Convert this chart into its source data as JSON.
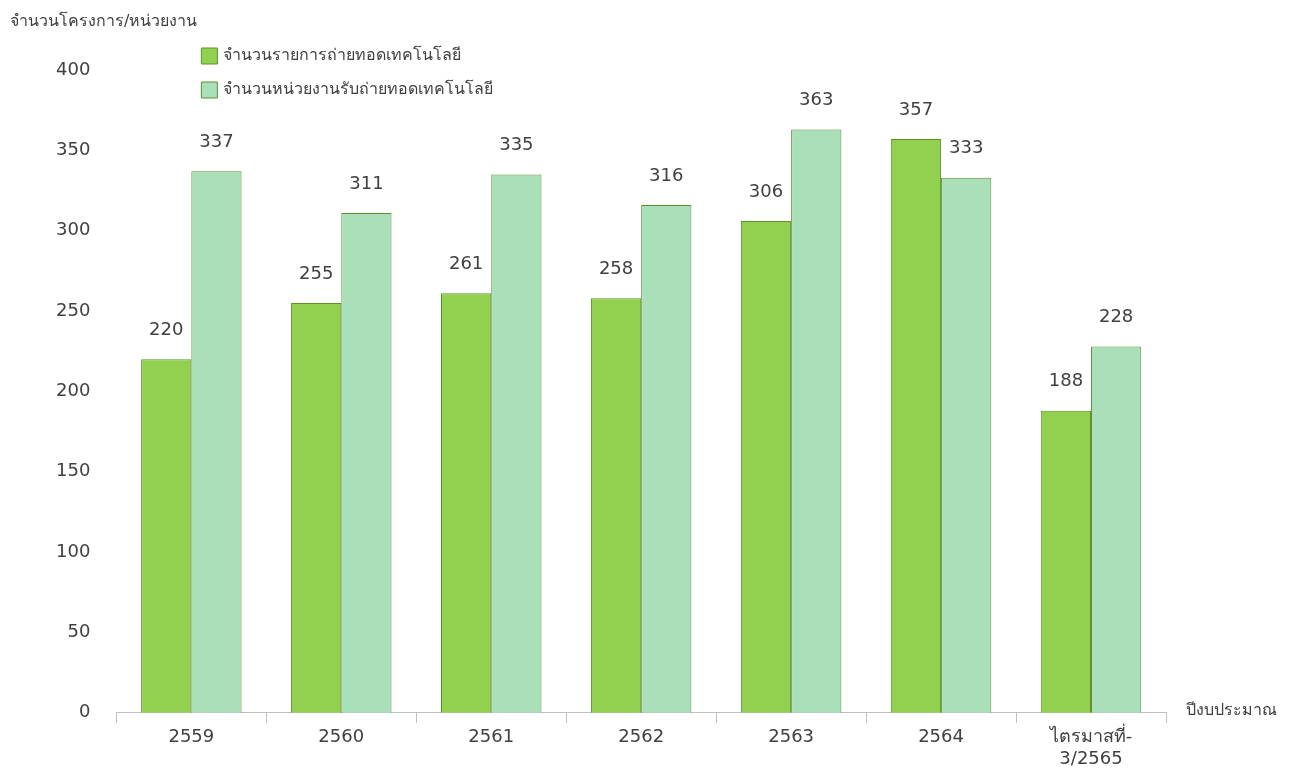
{
  "chart_data": {
    "type": "bar",
    "xlabel": "ปีงบประมาณ",
    "ylabel": "จำนวนโครงการ/หน่วยงาน",
    "categories": [
      "2559",
      "2560",
      "2561",
      "2562",
      "2563",
      "2564",
      "ไตรมาสที่-3/2565"
    ],
    "series": [
      {
        "name": "จำนวนรายการถ่ายทอดเทคโนโลยี",
        "color": "#92d050",
        "values": [
          220,
          255,
          261,
          258,
          306,
          357,
          188
        ]
      },
      {
        "name": "จำนวนหน่วยงานรับถ่ายทอดเทคโนโลยี",
        "color": "#a9dfb9",
        "values": [
          337,
          311,
          335,
          316,
          363,
          333,
          228
        ]
      }
    ],
    "ylim": [
      0,
      400
    ],
    "yticks": [
      0,
      50,
      100,
      150,
      200,
      250,
      300,
      350,
      400
    ],
    "legend": "top left",
    "data_labels": true
  }
}
